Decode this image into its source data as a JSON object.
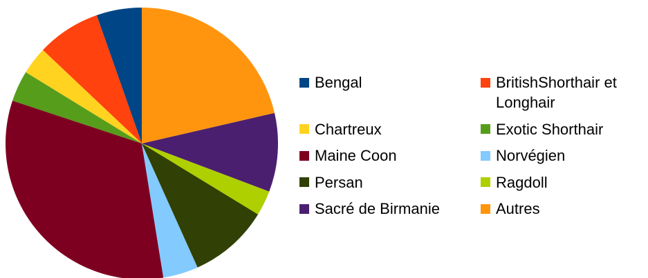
{
  "chart_data": {
    "type": "pie",
    "categories": [
      "Bengal",
      "BritishShorthair et Longhair",
      "Chartreux",
      "Exotic Shorthair",
      "Maine Coon",
      "Norvégien",
      "Persan",
      "Ragdoll",
      "Sacré de Birmanie",
      "Autres"
    ],
    "values": [
      5.4,
      7.6,
      3.3,
      3.7,
      32.8,
      4.2,
      9.6,
      3.0,
      9.4,
      21.5
    ],
    "colors": [
      "#004586",
      "#ff420e",
      "#ffd320",
      "#579d1c",
      "#7e0021",
      "#83caff",
      "#314004",
      "#aecf00",
      "#4b1f6f",
      "#ff950e"
    ],
    "direction": "counterclockwise",
    "legend": "right"
  }
}
